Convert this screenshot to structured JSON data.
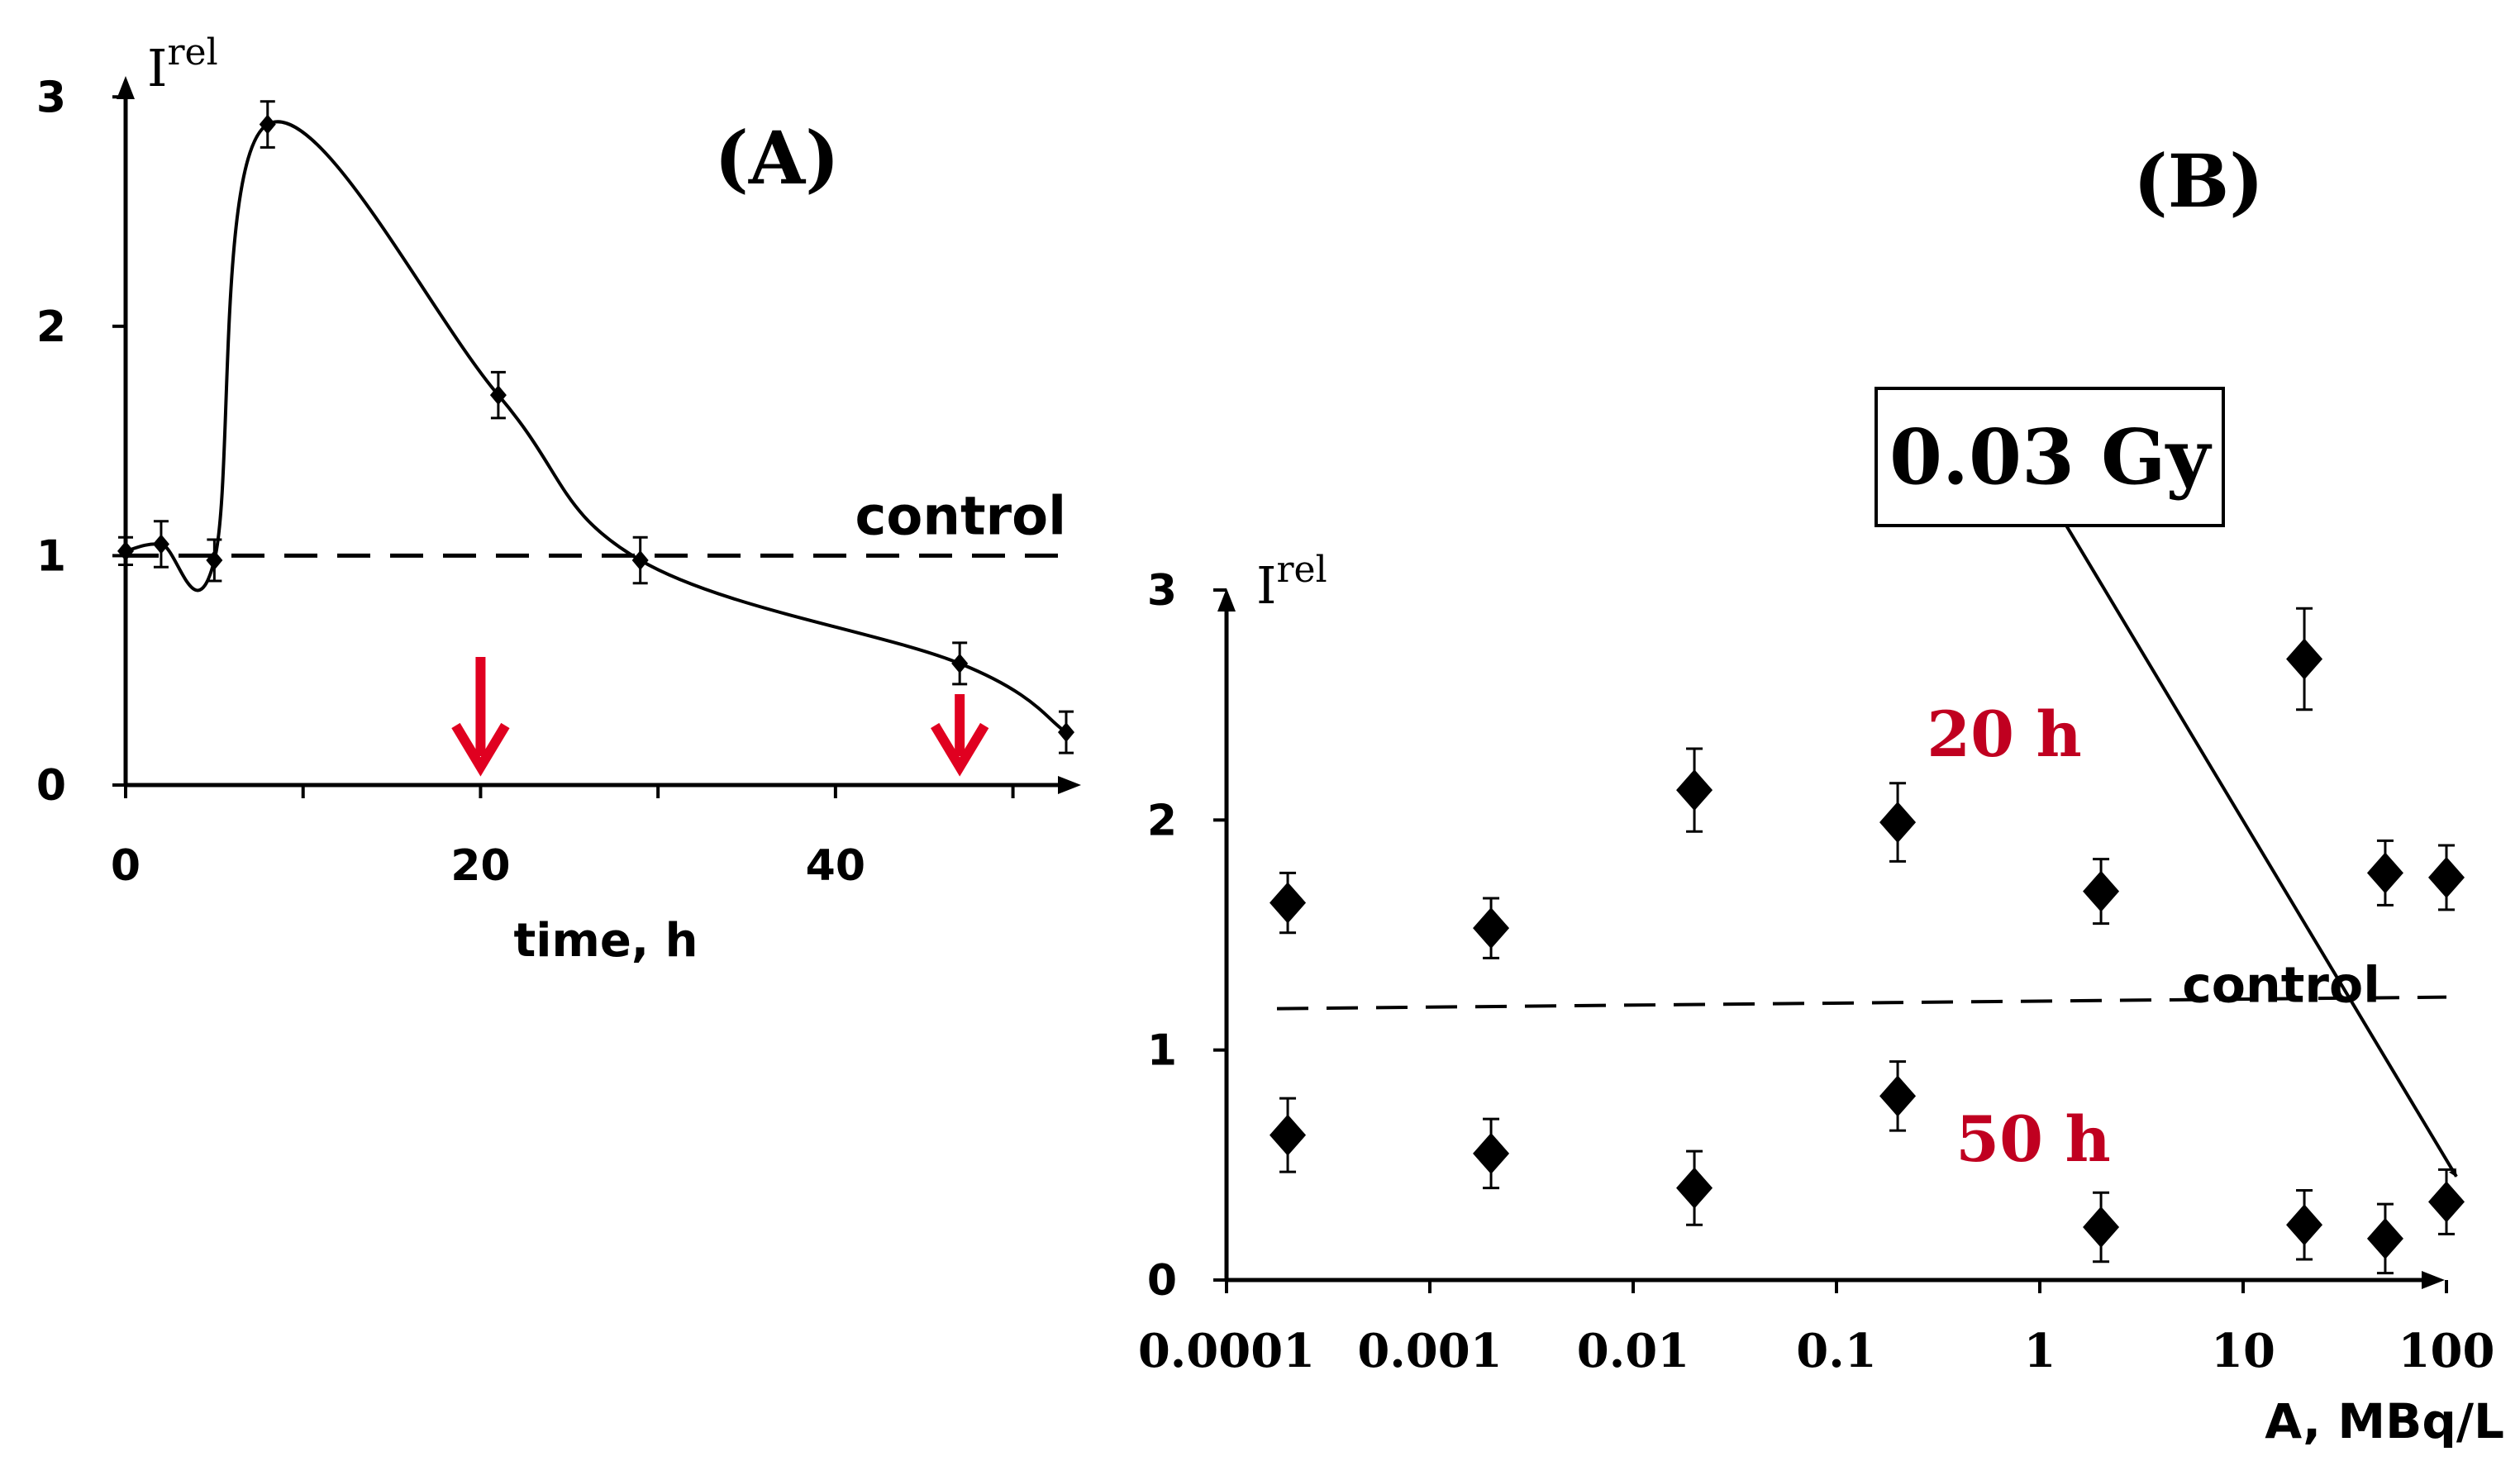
{
  "chart_data": [
    {
      "type": "line",
      "panel_label": "(A)",
      "xlabel": "time, h",
      "ylabel": "I",
      "ylabel_sup": "rel",
      "xlim": [
        0,
        53
      ],
      "ylim": [
        0,
        3
      ],
      "x_ticks": [
        0,
        20,
        40
      ],
      "y_ticks": [
        0,
        1,
        2,
        3
      ],
      "series": [
        {
          "x": [
            0,
            2,
            5,
            8,
            21,
            29,
            47,
            53
          ],
          "y": [
            1.02,
            1.05,
            0.98,
            2.88,
            1.7,
            0.98,
            0.53,
            0.23
          ],
          "err": [
            0.06,
            0.1,
            0.09,
            0.1,
            0.1,
            0.1,
            0.09,
            0.09
          ]
        }
      ],
      "control": {
        "label": "control",
        "y": 1.0
      },
      "arrows_x": [
        20,
        47
      ],
      "colors": {
        "arrow": "#e00020",
        "line": "#000000"
      }
    },
    {
      "type": "scatter",
      "panel_label": "(B)",
      "xlabel": "A, MBq/L",
      "ylabel": "I",
      "ylabel_sup": "rel",
      "x_scale": "log",
      "xlim": [
        0.0001,
        100
      ],
      "ylim": [
        0,
        3
      ],
      "x_tick_labels": [
        "0.0001",
        "0.001",
        "0.01",
        "0.1",
        "1",
        "10",
        "100"
      ],
      "y_ticks": [
        0,
        1,
        2,
        3
      ],
      "series": [
        {
          "name": "20 h",
          "x": [
            0.0002,
            0.002,
            0.02,
            0.2,
            2,
            20,
            50,
            100
          ],
          "y": [
            1.64,
            1.53,
            2.13,
            1.99,
            1.69,
            2.7,
            1.77,
            1.75
          ],
          "err": [
            0.13,
            0.13,
            0.18,
            0.17,
            0.14,
            0.22,
            0.14,
            0.14
          ]
        },
        {
          "name": "50 h",
          "x": [
            0.0002,
            0.002,
            0.02,
            0.2,
            2,
            20,
            50,
            100
          ],
          "y": [
            0.63,
            0.55,
            0.4,
            0.8,
            0.23,
            0.24,
            0.18,
            0.34
          ],
          "err": [
            0.16,
            0.15,
            0.16,
            0.15,
            0.15,
            0.15,
            0.15,
            0.14
          ]
        }
      ],
      "control": {
        "label": "control",
        "y_start": 1.18,
        "y_end": 1.23
      },
      "annotation": {
        "text": "0.03 Gy",
        "points_to": {
          "x": 100,
          "y": 0.45
        }
      },
      "colors": {
        "series_label": "#c00020",
        "marker": "#000000"
      }
    }
  ]
}
